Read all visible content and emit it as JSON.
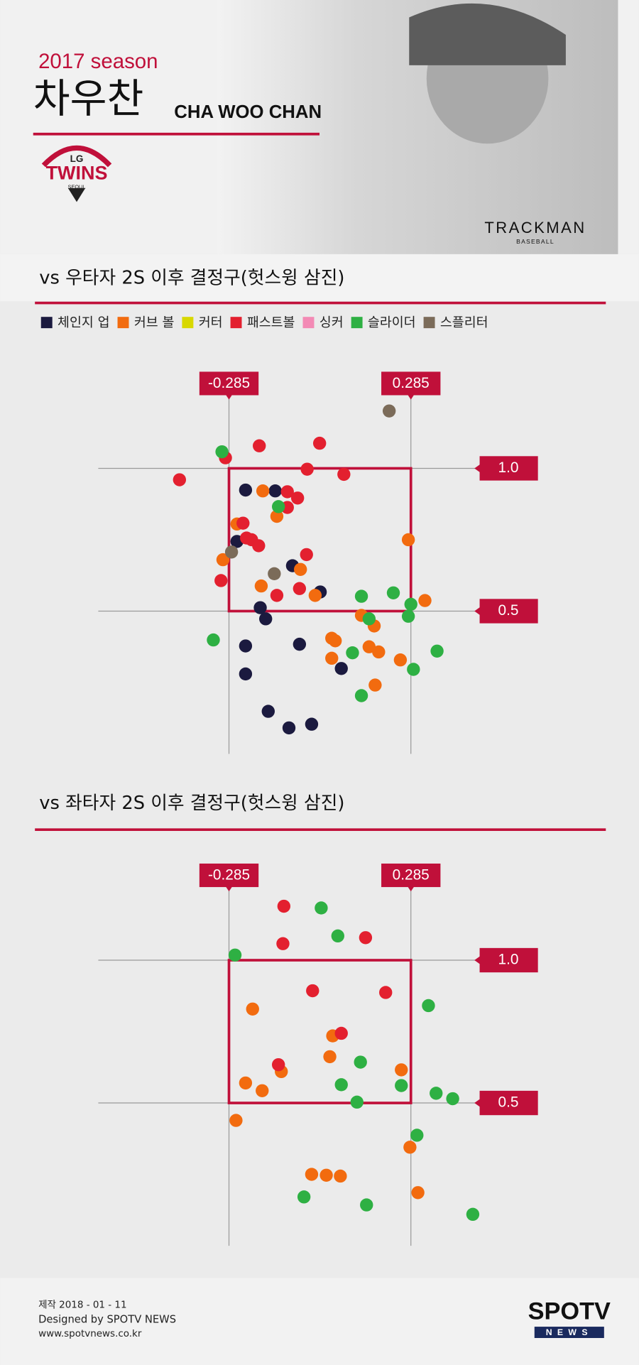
{
  "header": {
    "season": "2017 season",
    "name_kr": "차우찬",
    "name_en": "CHA WOO CHAN",
    "team_logo": {
      "top": "LG",
      "main": "TWINS",
      "bottom": "SEOUL"
    },
    "sponsor": {
      "main": "TRACKMAN",
      "sub": "BASEBALL"
    }
  },
  "chart_data": [
    {
      "type": "scatter",
      "title": "vs 우타자 2S 이후 결정구(헛스윙 삼진)",
      "legend": "top",
      "xlim": [
        -0.7,
        0.7
      ],
      "ylim": [
        0,
        1.25
      ],
      "xticks": [
        -0.285,
        0.285
      ],
      "yticks": [
        {
          "value": 1,
          "label": "1.0"
        },
        0.5
      ],
      "grid": true,
      "series": [
        {
          "name": "체인지 업",
          "color": "#1b1a3f",
          "x": [
            -0.233,
            -0.14,
            -0.086,
            0.001,
            -0.187,
            -0.17,
            -0.233,
            -0.064,
            -0.233,
            0.067,
            -0.162,
            -0.097,
            -0.026,
            -0.26
          ],
          "values": [
            0.924,
            0.921,
            0.659,
            0.567,
            0.512,
            0.473,
            0.378,
            0.384,
            0.28,
            0.299,
            0.149,
            0.091,
            0.104,
            0.744
          ]
        },
        {
          "name": "커브 볼",
          "color": "#f26b0f",
          "x": [
            -0.179,
            -0.135,
            -0.26,
            0.277,
            -0.304,
            -0.061,
            -0.184,
            -0.015,
            0.329,
            0.13,
            0.17,
            0.037,
            0.048,
            0.154,
            0.184,
            0.037,
            0.252,
            0.173
          ],
          "values": [
            0.921,
            0.832,
            0.805,
            0.75,
            0.68,
            0.646,
            0.588,
            0.555,
            0.537,
            0.485,
            0.448,
            0.405,
            0.396,
            0.375,
            0.357,
            0.335,
            0.329,
            0.241
          ]
        },
        {
          "name": "커터",
          "color": "#d8d800",
          "x": [],
          "values": []
        },
        {
          "name": "패스트볼",
          "color": "#e3202f",
          "x": [
            -0.19,
            -0.001,
            -0.296,
            -0.44,
            -0.04,
            0.075,
            -0.102,
            -0.07,
            -0.102,
            -0.241,
            -0.23,
            -0.214,
            -0.192,
            -0.042,
            -0.31,
            -0.064,
            -0.135
          ],
          "values": [
            1.079,
            1.088,
            1.037,
            0.96,
            0.997,
            0.979,
            0.918,
            0.896,
            0.863,
            0.808,
            0.756,
            0.75,
            0.729,
            0.698,
            0.607,
            0.579,
            0.555
          ]
        },
        {
          "name": "싱커",
          "color": "#f38ab5",
          "x": [],
          "values": []
        },
        {
          "name": "슬라이더",
          "color": "#2eb043",
          "x": [
            -0.307,
            -0.13,
            0.13,
            0.23,
            0.154,
            0.285,
            0.277,
            -0.334,
            0.102,
            0.367,
            0.293,
            0.13
          ],
          "values": [
            1.058,
            0.866,
            0.552,
            0.564,
            0.473,
            0.524,
            0.482,
            0.399,
            0.354,
            0.36,
            0.296,
            0.204
          ]
        },
        {
          "name": "스플리터",
          "color": "#7b6b59",
          "x": [
            0.217,
            -0.277,
            -0.143
          ],
          "values": [
            1.201,
            0.707,
            0.631
          ]
        }
      ]
    },
    {
      "type": "scatter",
      "title": "vs 좌타자 2S 이후 결정구(헛스윙 삼진)",
      "xlim": [
        -0.7,
        0.7
      ],
      "ylim": [
        0,
        1.25
      ],
      "xticks": [
        -0.285,
        0.285
      ],
      "yticks": [
        {
          "value": 1,
          "label": "1.0"
        },
        0.5
      ],
      "grid": true,
      "series": [
        {
          "color": "#f26b0f",
          "x": [
            -0.211,
            0.04,
            0.031,
            0.255,
            -0.121,
            -0.233,
            -0.181,
            -0.263,
            0.282,
            -0.026,
            0.02,
            0.064,
            0.307
          ],
          "values": [
            0.829,
            0.735,
            0.662,
            0.616,
            0.61,
            0.57,
            0.543,
            0.439,
            0.345,
            0.25,
            0.247,
            0.244,
            0.186
          ]
        },
        {
          "color": "#e3202f",
          "x": [
            -0.113,
            -0.116,
            0.143,
            -0.023,
            0.206,
            0.067,
            -0.13
          ],
          "values": [
            1.189,
            1.058,
            1.079,
            0.893,
            0.887,
            0.744,
            0.634
          ]
        },
        {
          "color": "#2eb043",
          "x": [
            0.004,
            0.056,
            -0.266,
            0.34,
            0.127,
            0.067,
            0.255,
            0.116,
            0.364,
            0.416,
            0.304,
            -0.05,
            0.146,
            0.479
          ],
          "values": [
            1.183,
            1.085,
            1.018,
            0.841,
            0.643,
            0.564,
            0.561,
            0.503,
            0.534,
            0.515,
            0.387,
            0.171,
            0.143,
            0.11
          ]
        }
      ]
    }
  ],
  "footer": {
    "date": "제작 2018 - 01 - 11",
    "credit": "Designed by SPOTV NEWS",
    "url": "www.spotvnews.co.kr",
    "logo": {
      "main": "SPOTV",
      "sub": "NEWS"
    }
  }
}
